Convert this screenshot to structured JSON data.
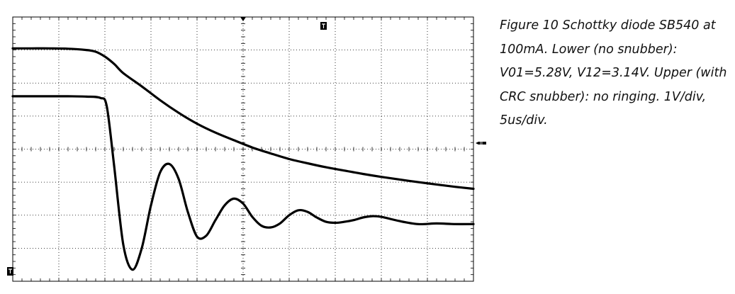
{
  "caption": {
    "lines": [
      "Figure 10 Schottky diode SB540 at",
      "100mA.  Lower (no snubber):",
      "V01=5.28V, V12=3.14V.  Upper (with",
      "CRC snubber): no ringing.  1V/div,",
      "5us/div."
    ]
  },
  "colors": {
    "trace": "#000000",
    "grid": "#000000",
    "background": "#ffffff"
  },
  "chart_data": {
    "type": "line",
    "title": "",
    "xlabel": "",
    "ylabel": "",
    "x_unit": "us",
    "y_unit": "V",
    "x_per_div": 5,
    "y_per_div": 1,
    "xlim": [
      0,
      50
    ],
    "ylim": [
      0,
      8
    ],
    "grid": true,
    "grid_divisions": {
      "x": 10,
      "y": 8
    },
    "trigger_markers": [
      "trigger-top-marker",
      "trigger-right-marker",
      "ground-left-marker"
    ],
    "series": [
      {
        "x": [
          0,
          2,
          4,
          6,
          8,
          9,
          10,
          11,
          12,
          14,
          16,
          18,
          20,
          22,
          24,
          26,
          28,
          30,
          32,
          34,
          36,
          38,
          40,
          42,
          44,
          46,
          48,
          50
        ],
        "y": [
          7.05,
          7.05,
          7.05,
          7.04,
          7.0,
          6.95,
          6.8,
          6.58,
          6.3,
          5.9,
          5.48,
          5.1,
          4.77,
          4.5,
          4.27,
          4.05,
          3.87,
          3.7,
          3.57,
          3.45,
          3.35,
          3.25,
          3.16,
          3.08,
          3.0,
          2.93,
          2.86,
          2.8
        ]
      },
      {
        "x": [
          0,
          2,
          4,
          6,
          8,
          9.5,
          10.2,
          11,
          12,
          13,
          14,
          15,
          16,
          17,
          18,
          19,
          20,
          21,
          22,
          23,
          24,
          25,
          26,
          27,
          28,
          29,
          30,
          31,
          32,
          33,
          34,
          35,
          36,
          37,
          38,
          39,
          40,
          42,
          44,
          46,
          48,
          50
        ],
        "y": [
          5.6,
          5.6,
          5.6,
          5.6,
          5.59,
          5.55,
          5.3,
          3.5,
          1.1,
          0.35,
          1.0,
          2.3,
          3.3,
          3.55,
          3.1,
          2.1,
          1.35,
          1.38,
          1.85,
          2.3,
          2.5,
          2.35,
          1.95,
          1.68,
          1.63,
          1.75,
          2.0,
          2.15,
          2.1,
          1.93,
          1.8,
          1.77,
          1.8,
          1.85,
          1.93,
          1.97,
          1.95,
          1.82,
          1.73,
          1.75,
          1.73,
          1.73
        ]
      }
    ]
  }
}
